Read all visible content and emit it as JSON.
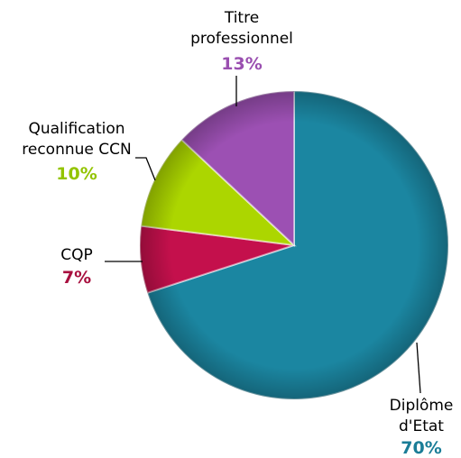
{
  "chart_data": {
    "type": "pie",
    "categories": [
      "Diplôme\nd'Etat",
      "CQP",
      "Qualification\nreconnue CCN",
      "Titre\nprofessionnel"
    ],
    "values": [
      70,
      7,
      10,
      13
    ],
    "value_labels": [
      "70%",
      "7%",
      "10%",
      "13%"
    ],
    "colors": [
      "#1b86a1",
      "#c4104c",
      "#acd600",
      "#9c50b3"
    ],
    "label_colors": [
      "#1a7d97",
      "#a8103f",
      "#93c400",
      "#9a4fb0"
    ]
  }
}
